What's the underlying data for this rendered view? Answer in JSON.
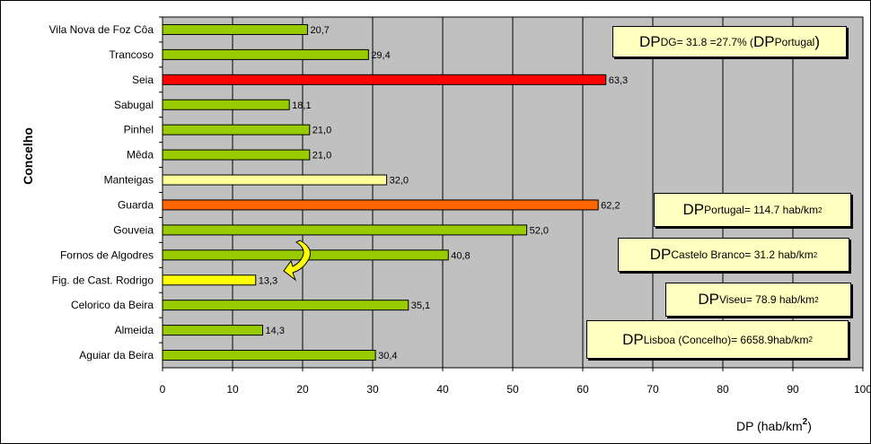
{
  "chart_data": {
    "type": "bar",
    "orientation": "horizontal",
    "categories": [
      "Vila Nova de Foz Côa",
      "Trancoso",
      "Seia",
      "Sabugal",
      "Pinhel",
      "Mêda",
      "Manteigas",
      "Guarda",
      "Gouveia",
      "Fornos de Algodres",
      "Fig. de Cast. Rodrigo",
      "Celorico da Beira",
      "Almeida",
      "Aguiar da Beira"
    ],
    "values": [
      20.7,
      29.4,
      63.3,
      18.1,
      21.0,
      21.0,
      32.0,
      62.2,
      52.0,
      40.8,
      13.3,
      35.1,
      14.3,
      30.4
    ],
    "value_labels": [
      "20,7",
      "29,4",
      "63,3",
      "18,1",
      "21,0",
      "21,0",
      "32,0",
      "62,2",
      "52,0",
      "40,8",
      "13,3",
      "35,1",
      "14,3",
      "30,4"
    ],
    "bar_colors": [
      "#99cc00",
      "#99cc00",
      "#ff0000",
      "#99cc00",
      "#99cc00",
      "#99cc00",
      "#ffff99",
      "#ff6600",
      "#99cc00",
      "#99cc00",
      "#ffff00",
      "#99cc00",
      "#99cc00",
      "#99cc00"
    ],
    "ylabel": "Concelho",
    "xlabel": "DP (hab/km",
    "xlabel_sup": "2",
    "xlabel_end": ")",
    "xlim": [
      0,
      100
    ],
    "xticks": [
      0,
      10,
      20,
      30,
      40,
      50,
      60,
      70,
      80,
      90,
      100
    ],
    "grid": true,
    "plot_background": "#c0c0c0",
    "arrow": {
      "from_category": "Fornos de Algodres",
      "to_category": "Fig. de Cast. Rodrigo",
      "color": "#ffff00"
    }
  },
  "annotations": {
    "dg": {
      "dp": "DP",
      "sub": "DG",
      "text": " = 31.8 =27.7% ( ",
      "dp2": "DP",
      "sub2": "Portugal",
      "end": ")"
    },
    "portugal": {
      "dp": "DP",
      "sub": "Portugal",
      "text": " = 114.7 hab/km",
      "sup": "2"
    },
    "castelo_branco": {
      "dp": "DP",
      "sub": "Castelo Branco",
      "text": " = 31.2 hab/km",
      "sup": "2"
    },
    "viseu": {
      "dp": "DP",
      "sub": "Viseu",
      "text": " = 78.9 hab/km",
      "sup": "2"
    },
    "lisboa": {
      "dp": "DP",
      "sub": "Lisboa (Concelho)",
      "text": "= 6658.9hab/km",
      "sup": "2"
    }
  }
}
